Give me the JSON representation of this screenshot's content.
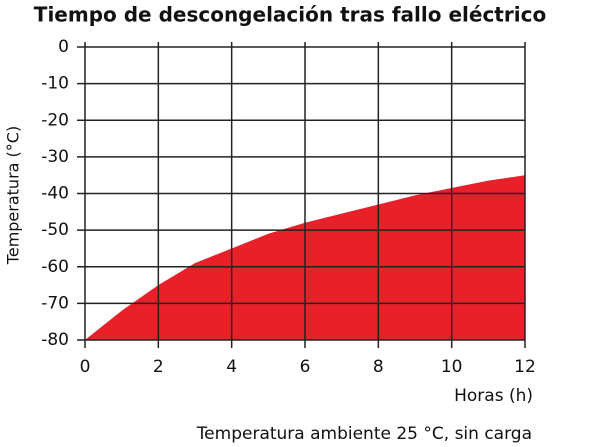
{
  "chart_data": {
    "type": "area",
    "title": "Tiempo de descongelación tras fallo eléctrico",
    "x_label": "Horas (h)",
    "y_label": "Temperatura (°C)",
    "note": "Temperatura ambiente 25 °C, sin carga",
    "x": [
      0,
      1,
      2,
      3,
      4,
      5,
      6,
      7,
      8,
      9,
      10,
      11,
      12
    ],
    "values": [
      -80,
      -72,
      -65,
      -59,
      -55,
      -51,
      -48,
      -45.5,
      -43,
      -40.5,
      -38.5,
      -36.5,
      -35
    ],
    "color": "#e8202a",
    "xlim": [
      0,
      12
    ],
    "xticks": [
      0,
      2,
      4,
      6,
      8,
      10,
      12
    ],
    "ylim": [
      -80,
      0
    ],
    "yticks": [
      0,
      -10,
      -20,
      -30,
      -40,
      -50,
      -60,
      -70,
      -80
    ],
    "grid": true
  }
}
